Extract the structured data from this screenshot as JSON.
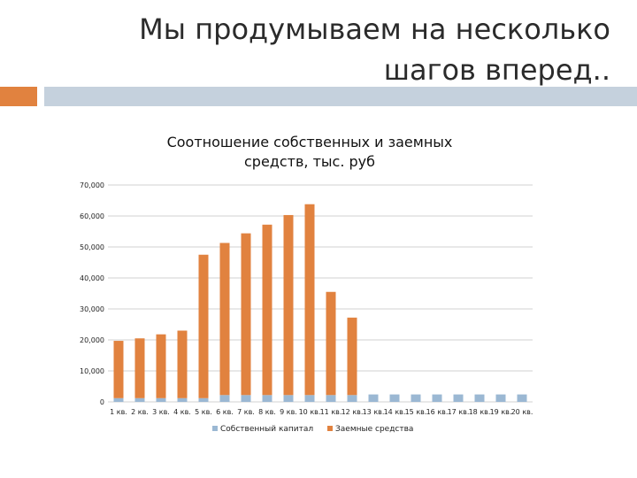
{
  "slide": {
    "title_line1": "Мы продумываем на несколько",
    "title_line2": "шагов вперед.."
  },
  "colors": {
    "accent": "#e1823f",
    "bar_band": "#c5d1dd",
    "own_capital": "#9bb8d3",
    "borrowed": "#e1823f",
    "grid": "#d0d0d0"
  },
  "chart_data": {
    "type": "bar",
    "stacked": true,
    "title_line1": "Соотношение собственных и заемных",
    "title_line2": "средств, тыс. руб",
    "categories": [
      "1 кв.",
      "2 кв.",
      "3 кв.",
      "4 кв.",
      "5 кв.",
      "6 кв.",
      "7 кв.",
      "8 кв.",
      "9 кв.",
      "10 кв.",
      "11 кв.",
      "12 кв.",
      "13 кв.",
      "14 кв.",
      "15 кв.",
      "16 кв.",
      "17 кв.",
      "18 кв.",
      "19 кв.",
      "20 кв."
    ],
    "series": [
      {
        "name": "Собственный капитал",
        "color": "#9bb8d3",
        "values": [
          1200,
          1200,
          1200,
          1200,
          1200,
          2200,
          2200,
          2200,
          2200,
          2200,
          2200,
          2200,
          2400,
          2400,
          2400,
          2400,
          2400,
          2400,
          2400,
          2400
        ]
      },
      {
        "name": "Заемные средства",
        "color": "#e1823f",
        "values": [
          18500,
          19300,
          20600,
          21800,
          46300,
          49100,
          52200,
          55000,
          58100,
          61600,
          33300,
          25000,
          0,
          0,
          0,
          0,
          0,
          0,
          0,
          0
        ]
      }
    ],
    "y_ticks": [
      "0",
      "10,000",
      "20,000",
      "30,000",
      "40,000",
      "50,000",
      "60,000",
      "70,000"
    ],
    "ylim": [
      0,
      70000
    ],
    "grid": true,
    "legend_position": "bottom"
  }
}
